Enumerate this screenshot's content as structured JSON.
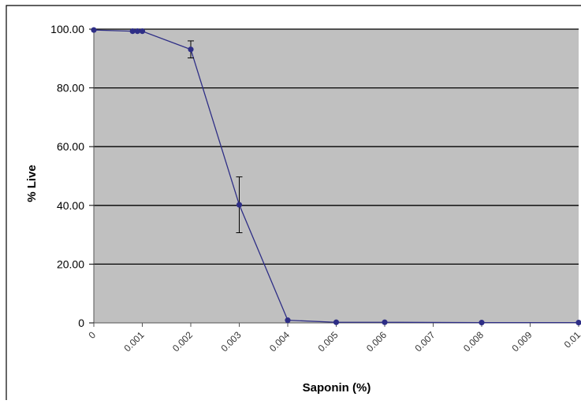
{
  "colors": {
    "plot_background": "#c0c0c0",
    "series_line": "#2e2e86",
    "marker": "#2e2e86",
    "gridline": "#000000",
    "error_bar": "#000000",
    "frame": "#000000"
  },
  "chart_data": {
    "type": "line",
    "title": "",
    "xlabel": "Saponin (%)",
    "ylabel": "% Live",
    "xlim": [
      0,
      0.01
    ],
    "ylim": [
      0,
      100
    ],
    "x_ticks": [
      "0",
      "0.001",
      "0.002",
      "0.003",
      "0.004",
      "0.005",
      "0.006",
      "0.007",
      "0.008",
      "0.009",
      "0.01"
    ],
    "y_ticks": [
      "0",
      "20.00",
      "40.00",
      "60.00",
      "80.00",
      "100.00"
    ],
    "grid": "horizontal major gridlines",
    "legend": "none",
    "series": [
      {
        "x": [
          0,
          0.0008,
          0.0009,
          0.001,
          0.002,
          0.003,
          0.004,
          0.005,
          0.006,
          0.008,
          0.01
        ],
        "y": [
          99.7,
          99.3,
          99.3,
          99.3,
          93.1,
          40.2,
          0.9,
          0.2,
          0.2,
          0.1,
          0.1
        ],
        "error": [
          0,
          0,
          0,
          0,
          2.9,
          9.5,
          0,
          0,
          0,
          0,
          0
        ]
      }
    ]
  }
}
